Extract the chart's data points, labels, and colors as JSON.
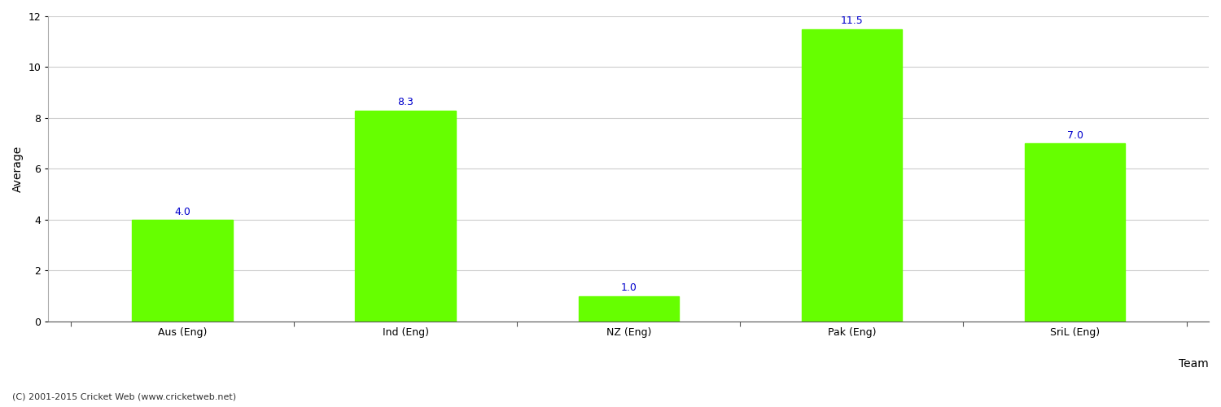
{
  "categories": [
    "Aus (Eng)",
    "Ind (Eng)",
    "NZ (Eng)",
    "Pak (Eng)",
    "SriL (Eng)"
  ],
  "values": [
    4.0,
    8.3,
    1.0,
    11.5,
    7.0
  ],
  "bar_color": "#66ff00",
  "bar_edge_color": "#66ff00",
  "xlabel": "Team",
  "ylabel": "Average",
  "ylim": [
    0,
    12
  ],
  "yticks": [
    0,
    2,
    4,
    6,
    8,
    10,
    12
  ],
  "value_label_color": "#0000cc",
  "value_label_fontsize": 9,
  "xlabel_fontsize": 10,
  "ylabel_fontsize": 10,
  "tick_label_fontsize": 9,
  "background_color": "#ffffff",
  "grid_color": "#cccccc",
  "footer_text": "(C) 2001-2015 Cricket Web (www.cricketweb.net)",
  "footer_fontsize": 8,
  "footer_color": "#333333"
}
